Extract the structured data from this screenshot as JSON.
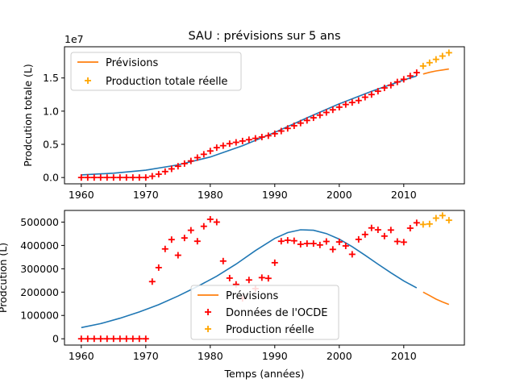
{
  "chart_data": [
    {
      "type": "line",
      "title": "SAU : prévisions sur 5 ans",
      "xlabel": "",
      "ylabel": "Prodcution totale (L)",
      "scale_label": "1e7",
      "xlim": [
        1957.4,
        2019.4
      ],
      "ylim": [
        -0.095,
        1.97
      ],
      "xticks": [
        1960,
        1970,
        1980,
        1990,
        2000,
        2010
      ],
      "yticks": [
        0.0,
        0.5,
        1.0,
        1.5
      ],
      "ytick_labels": [
        "0.0",
        "0.5",
        "1.0",
        "1.5"
      ],
      "grid": false,
      "legend_position": "upper left",
      "legend": [
        "Prévisions",
        "Production totale réelle"
      ],
      "colors": {
        "fit": "#1f77b4",
        "forecast": "#ff7f0e",
        "ocde": "#ff0000",
        "actual": "#ffa500"
      },
      "fit_curve": {
        "x": [
          1960,
          1965,
          1970,
          1975,
          1980,
          1985,
          1990,
          1995,
          2000,
          2005,
          2010,
          2012
        ],
        "y": [
          0.04,
          0.065,
          0.11,
          0.19,
          0.31,
          0.48,
          0.68,
          0.9,
          1.11,
          1.3,
          1.47,
          1.53
        ]
      },
      "forecast": {
        "x": [
          2013,
          2014,
          2015,
          2016,
          2017
        ],
        "y": [
          1.56,
          1.585,
          1.605,
          1.62,
          1.635
        ]
      },
      "ocde_points": {
        "x": [
          1960,
          1961,
          1962,
          1963,
          1964,
          1965,
          1966,
          1967,
          1968,
          1969,
          1970,
          1971,
          1972,
          1973,
          1974,
          1975,
          1976,
          1977,
          1978,
          1979,
          1980,
          1981,
          1982,
          1983,
          1984,
          1985,
          1986,
          1987,
          1988,
          1989,
          1990,
          1991,
          1992,
          1993,
          1994,
          1995,
          1996,
          1997,
          1998,
          1999,
          2000,
          2001,
          2002,
          2003,
          2004,
          2005,
          2006,
          2007,
          2008,
          2009,
          2010,
          2011,
          2012
        ],
        "y": [
          0,
          0,
          0,
          0,
          0,
          0,
          0,
          0,
          0,
          0,
          0,
          0.02,
          0.05,
          0.09,
          0.13,
          0.17,
          0.21,
          0.25,
          0.3,
          0.35,
          0.4,
          0.45,
          0.48,
          0.51,
          0.53,
          0.55,
          0.57,
          0.59,
          0.61,
          0.63,
          0.66,
          0.7,
          0.74,
          0.78,
          0.82,
          0.86,
          0.9,
          0.94,
          0.98,
          1.02,
          1.06,
          1.1,
          1.13,
          1.16,
          1.21,
          1.25,
          1.3,
          1.35,
          1.39,
          1.44,
          1.48,
          1.53,
          1.58
        ]
      },
      "actual_points": {
        "x": [
          2013,
          2014,
          2015,
          2016,
          2017
        ],
        "y": [
          1.68,
          1.73,
          1.78,
          1.83,
          1.88
        ]
      }
    },
    {
      "type": "line",
      "title": "",
      "xlabel": "Temps (années)",
      "ylabel": "Prodcution (L)",
      "xlim": [
        1957.4,
        2019.4
      ],
      "ylim": [
        -27000,
        550000
      ],
      "xticks": [
        1960,
        1970,
        1980,
        1990,
        2000,
        2010
      ],
      "yticks": [
        0,
        100000,
        200000,
        300000,
        400000,
        500000
      ],
      "ytick_labels": [
        "0",
        "100000",
        "200000",
        "300000",
        "400000",
        "500000"
      ],
      "grid": false,
      "legend_position": "lower center",
      "legend": [
        "Prévisions",
        "Données de l'OCDE",
        "Production réelle"
      ],
      "colors": {
        "fit": "#1f77b4",
        "forecast": "#ff7f0e",
        "ocde": "#ff0000",
        "actual": "#ffa500"
      },
      "fit_curve": {
        "x": [
          1960,
          1963,
          1966,
          1969,
          1972,
          1975,
          1978,
          1981,
          1984,
          1987,
          1990,
          1992,
          1994,
          1996,
          1998,
          2000,
          2002,
          2004,
          2006,
          2008,
          2010,
          2012
        ],
        "y": [
          48000,
          65000,
          88000,
          115000,
          146000,
          183000,
          224000,
          268000,
          320000,
          378000,
          430000,
          455000,
          467000,
          465000,
          451000,
          427000,
          395000,
          358000,
          320000,
          283000,
          248000,
          218000
        ]
      },
      "forecast": {
        "x": [
          2013,
          2014,
          2015,
          2016,
          2017
        ],
        "y": [
          200000,
          185000,
          170000,
          158000,
          147000
        ]
      },
      "ocde_points": {
        "x": [
          1960,
          1961,
          1962,
          1963,
          1964,
          1965,
          1966,
          1967,
          1968,
          1969,
          1970,
          1971,
          1972,
          1973,
          1974,
          1975,
          1976,
          1977,
          1978,
          1979,
          1980,
          1981,
          1982,
          1983,
          1984,
          1985,
          1986,
          1987,
          1988,
          1989,
          1990,
          1991,
          1992,
          1993,
          1994,
          1995,
          1996,
          1997,
          1998,
          1999,
          2000,
          2001,
          2002,
          2003,
          2004,
          2005,
          2006,
          2007,
          2008,
          2009,
          2010,
          2011,
          2012
        ],
        "y": [
          0,
          0,
          0,
          0,
          0,
          0,
          0,
          0,
          0,
          0,
          0,
          245000,
          305000,
          385000,
          425000,
          358000,
          432000,
          465000,
          418000,
          482000,
          512000,
          500000,
          333000,
          260000,
          233000,
          173000,
          252000,
          215000,
          262000,
          259000,
          326000,
          418000,
          422000,
          420000,
          405000,
          408000,
          408000,
          402000,
          417000,
          383000,
          415000,
          398000,
          362000,
          426000,
          447000,
          475000,
          467000,
          440000,
          466000,
          417000,
          414000,
          474000,
          497000
        ]
      },
      "actual_points": {
        "x": [
          2013,
          2014,
          2015,
          2016,
          2017
        ],
        "y": [
          490000,
          492000,
          517000,
          528000,
          508000
        ]
      }
    }
  ]
}
